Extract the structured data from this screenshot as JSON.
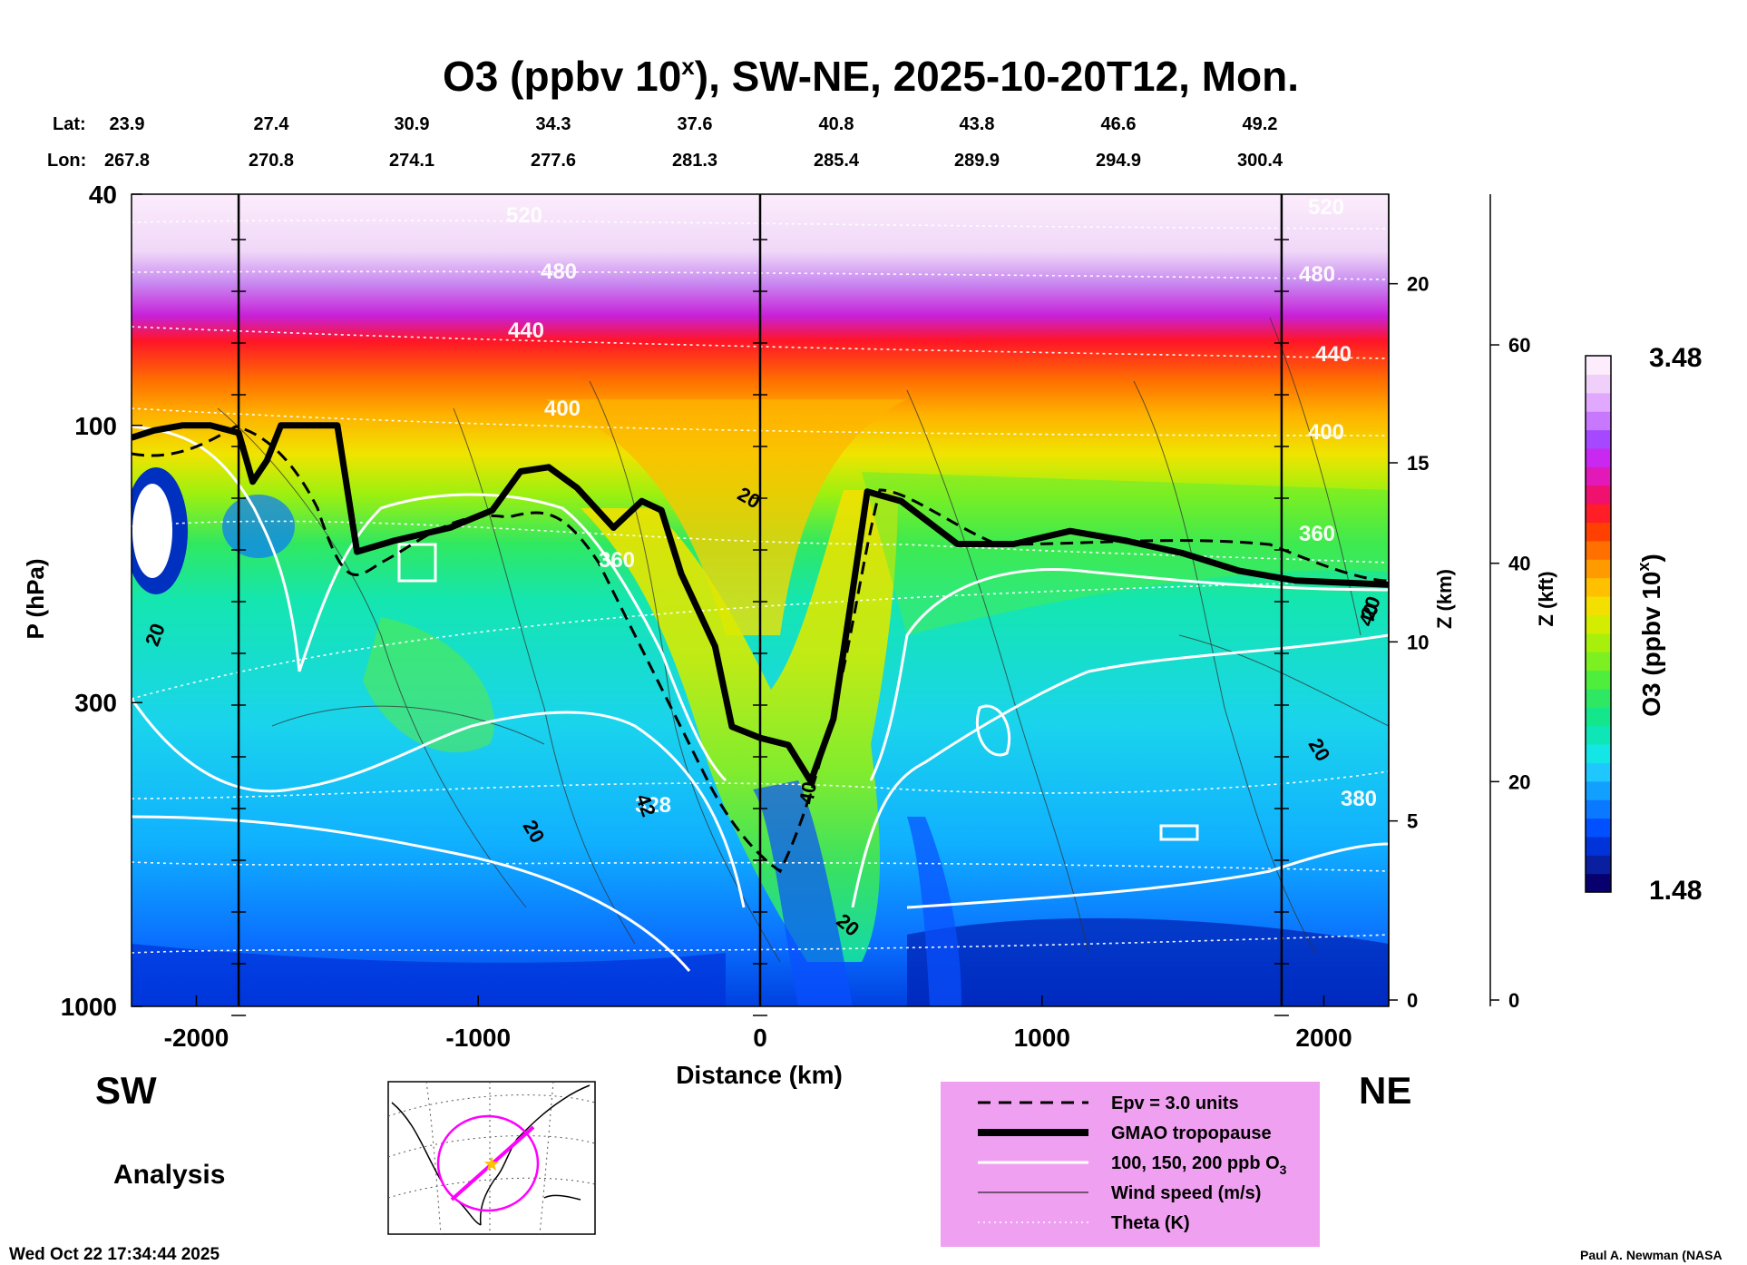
{
  "chart_data": {
    "type": "heatmap",
    "title_main": "O3 (ppbv 10",
    "title_sup": "x",
    "title_rest": "), SW-NE, 2025-10-20T12, Mon.",
    "lat_label": "Lat:",
    "lon_label": "Lon:",
    "lat": [
      "23.9",
      "27.4",
      "30.9",
      "34.3",
      "37.6",
      "40.8",
      "43.8",
      "46.6",
      "49.2"
    ],
    "lon": [
      "267.8",
      "270.8",
      "274.1",
      "277.6",
      "281.3",
      "285.4",
      "289.9",
      "294.9",
      "300.4"
    ],
    "xlabel": "Distance (km)",
    "x_ticks": [
      -2000,
      -1000,
      0,
      1000,
      2000
    ],
    "xlim": [
      -2230,
      2230
    ],
    "ylabel": "P (hPa)",
    "y_ticks": [
      40,
      100,
      300,
      1000
    ],
    "ylim": [
      1000,
      40
    ],
    "z_km_label": "Z (km)",
    "z_km_ticks": [
      0,
      5,
      10,
      15,
      20
    ],
    "z_kft_label": "Z (kft)",
    "z_kft_ticks": [
      0,
      20,
      40,
      60
    ],
    "colorbar_label": "O3 (ppbv 10",
    "colorbar_sup": "x",
    "colorbar_close": ")",
    "colorbar_max": "3.48",
    "colorbar_min": "1.48",
    "colorbar_colors": [
      "#08006e",
      "#0a1ea0",
      "#0033d8",
      "#0050ff",
      "#0a78ff",
      "#12a0ff",
      "#1ec8ff",
      "#14e6e6",
      "#0ee6b8",
      "#14e68c",
      "#2ee864",
      "#50ee3c",
      "#7cf020",
      "#a8f00c",
      "#d4ec00",
      "#f4e000",
      "#ffc000",
      "#ff9a00",
      "#ff7000",
      "#ff4000",
      "#ff1e28",
      "#f0106e",
      "#e218b8",
      "#c828f0",
      "#a648ff",
      "#c878ff",
      "#e0a8ff",
      "#f0d0fa",
      "#fcecfc"
    ],
    "theta_labels": [
      "520",
      "480",
      "440",
      "400",
      "360",
      "360",
      "400",
      "440",
      "480",
      "520",
      "380",
      "328"
    ],
    "wind_labels": [
      "20",
      "20",
      "20",
      "20",
      "20",
      "20",
      "40",
      "42",
      "40"
    ],
    "left_region": "SW",
    "right_region": "NE",
    "analysis_label": "Analysis",
    "legend": [
      {
        "label": "Epv = 3.0 units",
        "style": "dashed"
      },
      {
        "label": "GMAO tropopause",
        "style": "thick"
      },
      {
        "label": "100, 150, 200 ppb O",
        "sub": "3",
        "style": "white"
      },
      {
        "label": "Wind speed (m/s)",
        "style": "thin"
      },
      {
        "label": "Theta (K)",
        "style": "dotted"
      }
    ],
    "tropopause_hpa": [
      [
        -2230,
        105
      ],
      [
        -2150,
        102
      ],
      [
        -2050,
        100
      ],
      [
        -1950,
        100
      ],
      [
        -1850,
        103
      ],
      [
        -1800,
        125
      ],
      [
        -1750,
        115
      ],
      [
        -1700,
        100
      ],
      [
        -1500,
        100
      ],
      [
        -1430,
        165
      ],
      [
        -1300,
        158
      ],
      [
        -1100,
        150
      ],
      [
        -950,
        140
      ],
      [
        -850,
        120
      ],
      [
        -750,
        118
      ],
      [
        -650,
        128
      ],
      [
        -520,
        150
      ],
      [
        -420,
        135
      ],
      [
        -350,
        140
      ],
      [
        -280,
        180
      ],
      [
        -160,
        240
      ],
      [
        -100,
        330
      ],
      [
        0,
        345
      ],
      [
        100,
        355
      ],
      [
        180,
        410
      ],
      [
        260,
        320
      ],
      [
        330,
        190
      ],
      [
        380,
        130
      ],
      [
        500,
        135
      ],
      [
        700,
        160
      ],
      [
        900,
        160
      ],
      [
        1100,
        152
      ],
      [
        1300,
        158
      ],
      [
        1500,
        166
      ],
      [
        1700,
        178
      ],
      [
        1900,
        185
      ],
      [
        2230,
        188
      ]
    ],
    "footer_left": "Wed Oct 22 17:34:44 2025",
    "footer_right": "Paul A. Newman (NASA"
  }
}
